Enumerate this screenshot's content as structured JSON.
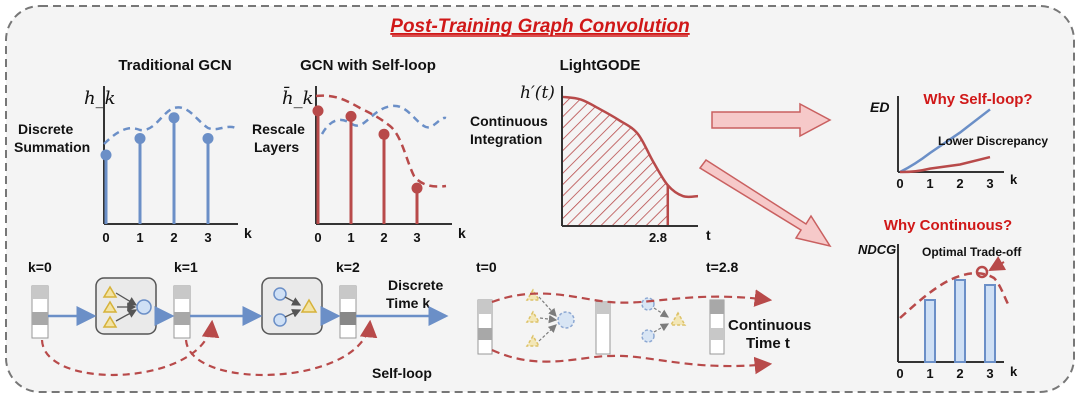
{
  "title": "Post-Training Graph Convolution",
  "colors": {
    "blue": "#6b8fc7",
    "red": "#b84a4a",
    "title_red": "#d01818",
    "gold": "#d6b23a",
    "panel_bg": "#f4f4f4",
    "panel_border": "#777777",
    "arrow_pink": "#f6c9c9"
  },
  "panels": {
    "traditional": {
      "title": "Traditional GCN",
      "ylabel": "h_k",
      "annotation_line1": "Discrete",
      "annotation_line2": "Summation",
      "xlabel": "k",
      "ticks": [
        "0",
        "1",
        "2",
        "3"
      ]
    },
    "selfloop": {
      "title": "GCN with Self-loop",
      "ylabel": "h̄_k",
      "annotation_line1": "Rescale",
      "annotation_line2": "Layers",
      "xlabel": "k",
      "ticks": [
        "0",
        "1",
        "2",
        "3"
      ]
    },
    "lightgode": {
      "title": "LightGODE",
      "ylabel": "h′(t)",
      "annotation_line1": "Continuous",
      "annotation_line2": "Integration",
      "xlabel": "t",
      "tick": "2.8"
    },
    "why_selfloop": {
      "title": "Why Self-loop?",
      "ylabel": "ED",
      "xlabel": "k",
      "ticks": [
        "0",
        "1",
        "2",
        "3"
      ],
      "annotation": "Lower Discrepancy"
    },
    "why_continuous": {
      "title": "Why Continuous?",
      "ylabel": "NDCG",
      "xlabel": "k",
      "ticks": [
        "0",
        "1",
        "2",
        "3"
      ],
      "annotation": "Optimal Trade-off"
    }
  },
  "discrete_flow": {
    "k0": "k=0",
    "k1": "k=1",
    "k2": "k=2",
    "label_line1": "Discrete",
    "label_line2": "Time k",
    "selfloop_label": "Self-loop"
  },
  "continuous_flow": {
    "t0": "t=0",
    "t28": "t=2.8",
    "label_line1": "Continuous",
    "label_line2": "Time t"
  },
  "chart_data": [
    {
      "type": "bar",
      "name_hint": "Traditional GCN stems",
      "categories": [
        "0",
        "1",
        "2",
        "3"
      ],
      "values": [
        0.5,
        0.62,
        0.77,
        0.62
      ],
      "title": "Traditional GCN",
      "xlabel": "k",
      "ylabel": "h_k"
    },
    {
      "type": "bar",
      "name_hint": "GCN with Self-loop stems",
      "categories": [
        "0",
        "1",
        "2",
        "3"
      ],
      "values": [
        0.82,
        0.78,
        0.65,
        0.26
      ],
      "title": "GCN with Self-loop",
      "xlabel": "k",
      "ylabel": "h̄_k"
    },
    {
      "type": "area",
      "title": "LightGODE",
      "xlabel": "t",
      "ylabel": "h′(t)",
      "x": [
        0,
        0.5,
        1.0,
        1.5,
        2.0,
        2.4,
        2.8,
        3.2,
        3.6
      ],
      "y": [
        0.95,
        0.93,
        0.86,
        0.78,
        0.68,
        0.48,
        0.3,
        0.22,
        0.22
      ],
      "shaded_until": 2.8
    },
    {
      "type": "line",
      "title": "Why Self-loop?",
      "xlabel": "k",
      "ylabel": "ED",
      "categories": [
        "0",
        "1",
        "2",
        "3"
      ],
      "series": [
        {
          "color": "#6b8fc7",
          "values": [
            0.0,
            0.28,
            0.58,
            0.92
          ]
        },
        {
          "color": "#b84a4a",
          "values": [
            0.0,
            0.05,
            0.11,
            0.22
          ]
        }
      ]
    },
    {
      "type": "bar",
      "title": "Why Continuous?",
      "xlabel": "k",
      "ylabel": "NDCG",
      "categories": [
        "1",
        "2",
        "3"
      ],
      "values": [
        0.62,
        0.82,
        0.77
      ]
    }
  ]
}
